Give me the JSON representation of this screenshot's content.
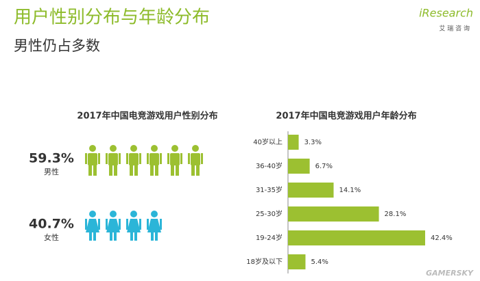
{
  "title": "用户性别分布与年龄分布",
  "subtitle": "男性仍占多数",
  "logo": {
    "name": "iResearch",
    "tagline": "艾 瑞 咨 询"
  },
  "watermark": "GAMERSKY",
  "chart_data": [
    {
      "type": "pictograph",
      "title": "2017年中国电竞游戏用户性别分布",
      "categories": [
        "男性",
        "女性"
      ],
      "values": [
        59.3,
        40.7
      ],
      "value_labels": [
        "59.3%",
        "40.7%"
      ],
      "colors": [
        "#9cc031",
        "#2bb5d8"
      ]
    },
    {
      "type": "hbar",
      "title": "2017年中国电竞游戏用户年龄分布",
      "categories": [
        "40岁以上",
        "36-40岁",
        "31-35岁",
        "25-30岁",
        "19-24岁",
        "18岁及以下"
      ],
      "values": [
        3.3,
        6.7,
        14.1,
        28.1,
        42.4,
        5.4
      ],
      "value_labels": [
        "3.3%",
        "6.7%",
        "14.1%",
        "28.1%",
        "42.4%",
        "5.4%"
      ],
      "color": "#9cc031"
    }
  ]
}
